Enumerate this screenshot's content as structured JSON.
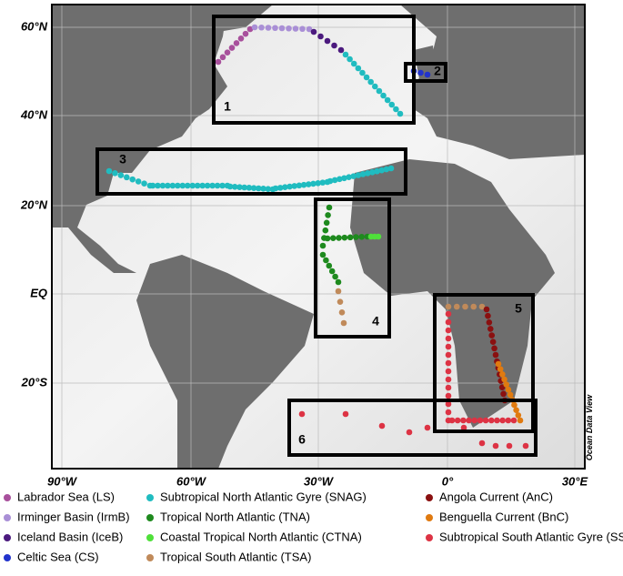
{
  "map": {
    "x_labels": [
      "90°W",
      "60°W",
      "30°W",
      "0°",
      "30°E"
    ],
    "y_labels": [
      "60°N",
      "40°N",
      "20°N",
      "EQ",
      "20°S"
    ],
    "regions": [
      "1",
      "2",
      "3",
      "4",
      "5",
      "6"
    ],
    "watermark": "Ocean Data View",
    "legend": [
      {
        "name": "Labrador Sea (LS)",
        "color": "#a8509c"
      },
      {
        "name": "Irminger Basin (IrmB)",
        "color": "#a98fd6"
      },
      {
        "name": "Iceland Basin (IceB)",
        "color": "#4b1a7e"
      },
      {
        "name": "Celtic Sea (CS)",
        "color": "#2233cc"
      },
      {
        "name": "Subtropical North Atlantic Gyre (SNAG)",
        "color": "#20bcc0"
      },
      {
        "name": "Tropical North Atlantic (TNA)",
        "color": "#1e8a1e"
      },
      {
        "name": "Coastal Tropical North Atlantic (CTNA)",
        "color": "#4fe03a"
      },
      {
        "name": "Tropical South Atlantic (TSA)",
        "color": "#c08a5a"
      },
      {
        "name": "Angola Current (AnC)",
        "color": "#8a1010"
      },
      {
        "name": "Benguella Current (BnC)",
        "color": "#e07a10"
      },
      {
        "name": "Subtropical South Atlantic Gyre (SSAG)",
        "color": "#dd3344"
      }
    ]
  }
}
